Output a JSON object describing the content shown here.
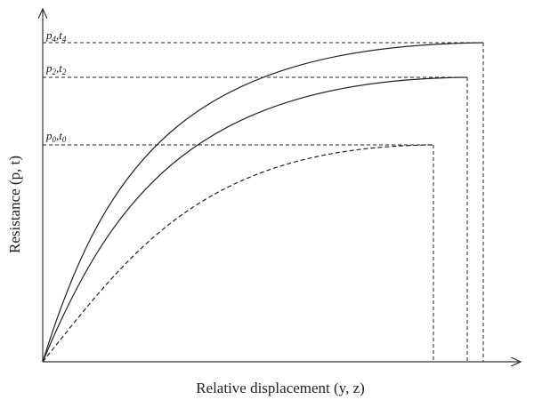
{
  "axes": {
    "x_label": "Relative displacement (y, z)",
    "y_label": "Resistance (p, t)"
  },
  "curves": [
    {
      "label": [
        "p",
        "4",
        ",",
        "t",
        "4"
      ]
    },
    {
      "label": [
        "p",
        "2",
        ",",
        "t",
        "2"
      ]
    },
    {
      "label": [
        "p",
        "0",
        ",",
        "t",
        "0"
      ]
    }
  ]
}
